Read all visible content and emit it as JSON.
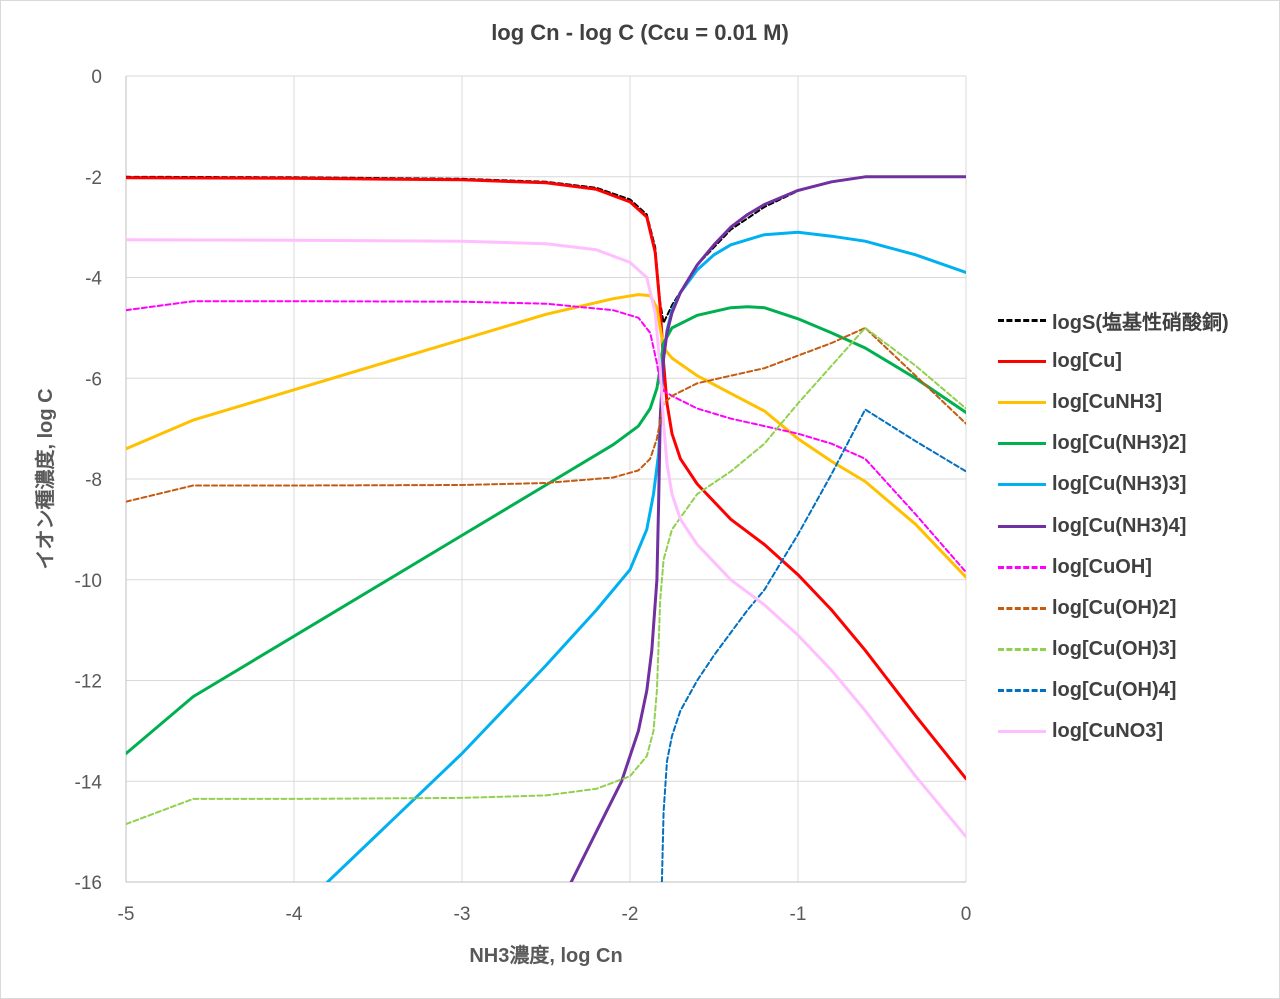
{
  "chart_data": {
    "type": "line",
    "title": "log Cn - log C (Ccu = 0.01 M)",
    "xlabel": "NH3濃度, log Cn",
    "ylabel": "イオン種濃度, log C",
    "xlim": [
      -5,
      0
    ],
    "ylim": [
      -16,
      0
    ],
    "xticks": [
      -5,
      -4,
      -3,
      -2,
      -1,
      0
    ],
    "yticks": [
      0,
      -2,
      -4,
      -6,
      -8,
      -10,
      -12,
      -14,
      -16
    ],
    "xtick_labels": [
      "-5",
      "-4",
      "-3",
      "-2",
      "-1",
      "0"
    ],
    "ytick_labels": [
      "0",
      "-2",
      "-4",
      "-6",
      "-8",
      "-10",
      "-12",
      "-14",
      "-16"
    ],
    "grid": true,
    "legend_position": "right",
    "series": [
      {
        "name": "logS(塩基性硝酸銅)",
        "color": "#000000",
        "dash": "dashed",
        "x": [
          -5,
          -4,
          -3,
          -2.5,
          -2.2,
          -2.0,
          -1.9,
          -1.85,
          -1.82,
          -1.8,
          -1.75,
          -1.6,
          -1.4,
          -1.2,
          -1.0,
          -0.8,
          -0.6,
          -0.3,
          0
        ],
        "y": [
          -2.0,
          -2.01,
          -2.04,
          -2.1,
          -2.22,
          -2.45,
          -2.75,
          -3.4,
          -4.5,
          -4.9,
          -4.55,
          -3.75,
          -3.05,
          -2.6,
          -2.28,
          -2.1,
          -2.0,
          -2.0,
          -2.0
        ]
      },
      {
        "name": "log[Cu]",
        "color": "#ff0000",
        "dash": "solid",
        "x": [
          -5,
          -4,
          -3,
          -2.5,
          -2.2,
          -2.0,
          -1.9,
          -1.85,
          -1.82,
          -1.8,
          -1.78,
          -1.75,
          -1.7,
          -1.6,
          -1.4,
          -1.2,
          -1.0,
          -0.8,
          -0.6,
          -0.3,
          0
        ],
        "y": [
          -2.02,
          -2.03,
          -2.06,
          -2.12,
          -2.25,
          -2.5,
          -2.8,
          -3.5,
          -4.6,
          -5.7,
          -6.5,
          -7.1,
          -7.6,
          -8.1,
          -8.8,
          -9.3,
          -9.9,
          -10.6,
          -11.4,
          -12.7,
          -13.95
        ]
      },
      {
        "name": "log[CuNH3]",
        "color": "#ffc000",
        "dash": "solid",
        "x": [
          -5,
          -4.6,
          -4,
          -3,
          -2.5,
          -2.1,
          -1.95,
          -1.88,
          -1.84,
          -1.82,
          -1.8,
          -1.75,
          -1.6,
          -1.4,
          -1.2,
          -1.0,
          -0.8,
          -0.6,
          -0.3,
          0
        ],
        "y": [
          -7.4,
          -6.83,
          -6.23,
          -5.23,
          -4.73,
          -4.42,
          -4.34,
          -4.36,
          -4.6,
          -5.0,
          -5.4,
          -5.6,
          -5.95,
          -6.3,
          -6.65,
          -7.2,
          -7.65,
          -8.05,
          -8.9,
          -9.95
        ]
      },
      {
        "name": "log[Cu(NH3)2]",
        "color": "#00b050",
        "dash": "solid",
        "x": [
          -5,
          -4.6,
          -4,
          -3,
          -2.5,
          -2.1,
          -1.95,
          -1.88,
          -1.84,
          -1.82,
          -1.8,
          -1.75,
          -1.6,
          -1.4,
          -1.3,
          -1.2,
          -1.0,
          -0.8,
          -0.6,
          -0.3,
          0
        ],
        "y": [
          -13.45,
          -12.32,
          -11.12,
          -9.12,
          -8.12,
          -7.32,
          -6.95,
          -6.6,
          -6.2,
          -5.8,
          -5.3,
          -5.0,
          -4.75,
          -4.6,
          -4.58,
          -4.6,
          -4.82,
          -5.1,
          -5.4,
          -6.0,
          -6.68
        ]
      },
      {
        "name": "log[Cu(NH3)3]",
        "color": "#00b0f0",
        "dash": "solid",
        "x": [
          -3.8,
          -3,
          -2.5,
          -2.2,
          -2.0,
          -1.9,
          -1.86,
          -1.83,
          -1.82,
          -1.81,
          -1.8,
          -1.78,
          -1.75,
          -1.7,
          -1.6,
          -1.5,
          -1.4,
          -1.2,
          -1.0,
          -0.8,
          -0.6,
          -0.3,
          0
        ],
        "y": [
          -16.0,
          -13.45,
          -11.7,
          -10.6,
          -9.8,
          -9.0,
          -8.3,
          -7.5,
          -6.9,
          -6.2,
          -5.6,
          -5.05,
          -4.65,
          -4.3,
          -3.85,
          -3.55,
          -3.35,
          -3.15,
          -3.1,
          -3.18,
          -3.28,
          -3.55,
          -3.9
        ]
      },
      {
        "name": "log[Cu(NH3)4]",
        "color": "#7030a0",
        "dash": "solid",
        "x": [
          -2.35,
          -2.2,
          -2.05,
          -1.95,
          -1.9,
          -1.87,
          -1.84,
          -1.83,
          -1.82,
          -1.8,
          -1.78,
          -1.75,
          -1.7,
          -1.6,
          -1.5,
          -1.4,
          -1.3,
          -1.2,
          -1.0,
          -0.8,
          -0.6,
          -0.3,
          0
        ],
        "y": [
          -16.0,
          -15.0,
          -14.0,
          -13.0,
          -12.2,
          -11.4,
          -10.0,
          -8.5,
          -6.8,
          -5.6,
          -5.1,
          -4.7,
          -4.3,
          -3.75,
          -3.35,
          -3.0,
          -2.75,
          -2.55,
          -2.27,
          -2.1,
          -2.0,
          -2.0,
          -2.0
        ]
      },
      {
        "name": "log[CuOH]",
        "color": "#ff00ff",
        "dash": "dashed",
        "x": [
          -5,
          -4.6,
          -4,
          -3,
          -2.5,
          -2.1,
          -1.95,
          -1.88,
          -1.84,
          -1.82,
          -1.8,
          -1.75,
          -1.6,
          -1.4,
          -1.2,
          -1.0,
          -0.8,
          -0.6,
          -0.3,
          0
        ],
        "y": [
          -4.65,
          -4.47,
          -4.47,
          -4.48,
          -4.52,
          -4.65,
          -4.8,
          -5.1,
          -5.7,
          -6.1,
          -6.25,
          -6.35,
          -6.6,
          -6.8,
          -6.95,
          -7.1,
          -7.3,
          -7.6,
          -8.7,
          -9.85
        ]
      },
      {
        "name": "log[Cu(OH)2]",
        "color": "#c55a11",
        "dash": "dashed",
        "x": [
          -5,
          -4.6,
          -4,
          -3,
          -2.5,
          -2.1,
          -1.95,
          -1.88,
          -1.84,
          -1.82,
          -1.8,
          -1.75,
          -1.6,
          -1.4,
          -1.2,
          -1.0,
          -0.8,
          -0.6,
          -0.3,
          0
        ],
        "y": [
          -8.45,
          -8.13,
          -8.13,
          -8.12,
          -8.08,
          -7.97,
          -7.83,
          -7.6,
          -7.2,
          -6.85,
          -6.5,
          -6.35,
          -6.1,
          -5.95,
          -5.8,
          -5.55,
          -5.3,
          -5.0,
          -5.95,
          -6.9
        ]
      },
      {
        "name": "log[Cu(OH)3]",
        "color": "#92d050",
        "dash": "dashed",
        "x": [
          -5,
          -4.6,
          -4,
          -3,
          -2.5,
          -2.2,
          -2.0,
          -1.9,
          -1.86,
          -1.84,
          -1.83,
          -1.82,
          -1.8,
          -1.75,
          -1.6,
          -1.4,
          -1.2,
          -1.0,
          -0.8,
          -0.6,
          -0.3,
          0
        ],
        "y": [
          -14.85,
          -14.35,
          -14.35,
          -14.33,
          -14.28,
          -14.15,
          -13.9,
          -13.5,
          -13.0,
          -12.2,
          -11.3,
          -10.4,
          -9.6,
          -9.0,
          -8.3,
          -7.85,
          -7.3,
          -6.5,
          -5.75,
          -5.0,
          -5.75,
          -6.6
        ]
      },
      {
        "name": "log[Cu(OH)4]",
        "color": "#0070c0",
        "dash": "dashed",
        "x": [
          -1.81,
          -1.8,
          -1.78,
          -1.75,
          -1.7,
          -1.6,
          -1.5,
          -1.4,
          -1.3,
          -1.2,
          -1.0,
          -0.8,
          -0.6,
          -0.3,
          0
        ],
        "y": [
          -16.0,
          -14.6,
          -13.6,
          -13.1,
          -12.6,
          -12.0,
          -11.5,
          -11.05,
          -10.6,
          -10.2,
          -9.1,
          -7.9,
          -6.62,
          -7.25,
          -7.85
        ]
      },
      {
        "name": "log[CuNO3]",
        "color": "#ffbfff",
        "dash": "solid",
        "x": [
          -5,
          -4,
          -3,
          -2.5,
          -2.2,
          -2.0,
          -1.9,
          -1.85,
          -1.82,
          -1.8,
          -1.78,
          -1.75,
          -1.7,
          -1.6,
          -1.4,
          -1.2,
          -1.0,
          -0.8,
          -0.6,
          -0.3,
          0
        ],
        "y": [
          -3.25,
          -3.26,
          -3.28,
          -3.33,
          -3.45,
          -3.7,
          -4.0,
          -4.7,
          -5.8,
          -6.9,
          -7.7,
          -8.3,
          -8.8,
          -9.3,
          -10.0,
          -10.5,
          -11.1,
          -11.8,
          -12.6,
          -13.9,
          -15.1
        ]
      }
    ]
  }
}
